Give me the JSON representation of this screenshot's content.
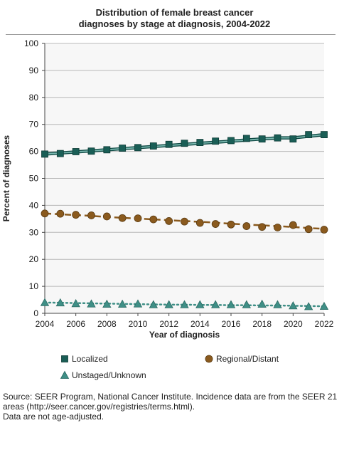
{
  "chart_data": {
    "type": "line",
    "title_lines": [
      "Distribution of female breast cancer",
      "diagnoses by stage at diagnosis, 2004-2022"
    ],
    "xlabel": "Year of diagnosis",
    "ylabel": "Percent of diagnoses",
    "xlim": [
      2004,
      2022
    ],
    "ylim": [
      0,
      100
    ],
    "x_ticks": [
      2004,
      2006,
      2008,
      2010,
      2012,
      2014,
      2016,
      2018,
      2020,
      2022
    ],
    "y_ticks": [
      0,
      10,
      20,
      30,
      40,
      50,
      60,
      70,
      80,
      90,
      100
    ],
    "grid": true,
    "legend_position": "bottom",
    "x": [
      2004,
      2005,
      2006,
      2007,
      2008,
      2009,
      2010,
      2011,
      2012,
      2013,
      2014,
      2015,
      2016,
      2017,
      2018,
      2019,
      2020,
      2021,
      2022
    ],
    "series": [
      {
        "name": "Localized",
        "marker": "square",
        "color": "#1a5e56",
        "line_color": "#7ab8b0",
        "values": [
          59.0,
          59.2,
          59.9,
          60.1,
          60.6,
          61.2,
          61.4,
          62.0,
          62.6,
          63.0,
          63.3,
          63.8,
          64.0,
          64.8,
          64.6,
          65.0,
          64.6,
          66.2,
          66.2
        ],
        "trend": [
          59.0,
          59.4,
          59.8,
          60.2,
          60.6,
          61.0,
          61.4,
          61.8,
          62.2,
          62.6,
          63.0,
          63.4,
          63.8,
          64.2,
          64.6,
          65.0,
          65.0,
          65.6,
          66.2
        ]
      },
      {
        "name": "Regional/Distant",
        "marker": "circle",
        "color": "#8a5a1e",
        "line_color": "#8a5a1e",
        "values": [
          37.0,
          36.9,
          36.5,
          36.3,
          35.9,
          35.3,
          35.2,
          34.8,
          34.2,
          34.0,
          33.5,
          33.1,
          32.9,
          32.3,
          32.0,
          31.8,
          32.7,
          31.2,
          31.0
        ],
        "trend": [
          37.0,
          36.7,
          36.4,
          36.1,
          35.7,
          35.4,
          35.1,
          34.8,
          34.5,
          34.2,
          33.9,
          33.6,
          33.2,
          32.9,
          32.6,
          32.3,
          32.0,
          31.6,
          31.3
        ]
      },
      {
        "name": "Unstaged/Unknown",
        "marker": "triangle",
        "color": "#3f8f86",
        "line_color": "#3f8f86",
        "values": [
          4.0,
          3.9,
          3.6,
          3.5,
          3.4,
          3.4,
          3.5,
          3.2,
          3.2,
          3.2,
          3.2,
          3.2,
          3.2,
          3.2,
          3.4,
          3.2,
          2.8,
          2.5,
          2.6
        ],
        "trend": [
          4.0,
          3.9,
          3.8,
          3.7,
          3.6,
          3.5,
          3.4,
          3.3,
          3.2,
          3.2,
          3.1,
          3.1,
          3.0,
          3.0,
          2.9,
          2.9,
          2.8,
          2.7,
          2.6
        ]
      }
    ]
  },
  "source_lines": [
    "Source: SEER Program, National Cancer Institute. Incidence data are from the SEER 21",
    "areas (http://seer.cancer.gov/registries/terms.html).",
    "Data are not age-adjusted."
  ]
}
